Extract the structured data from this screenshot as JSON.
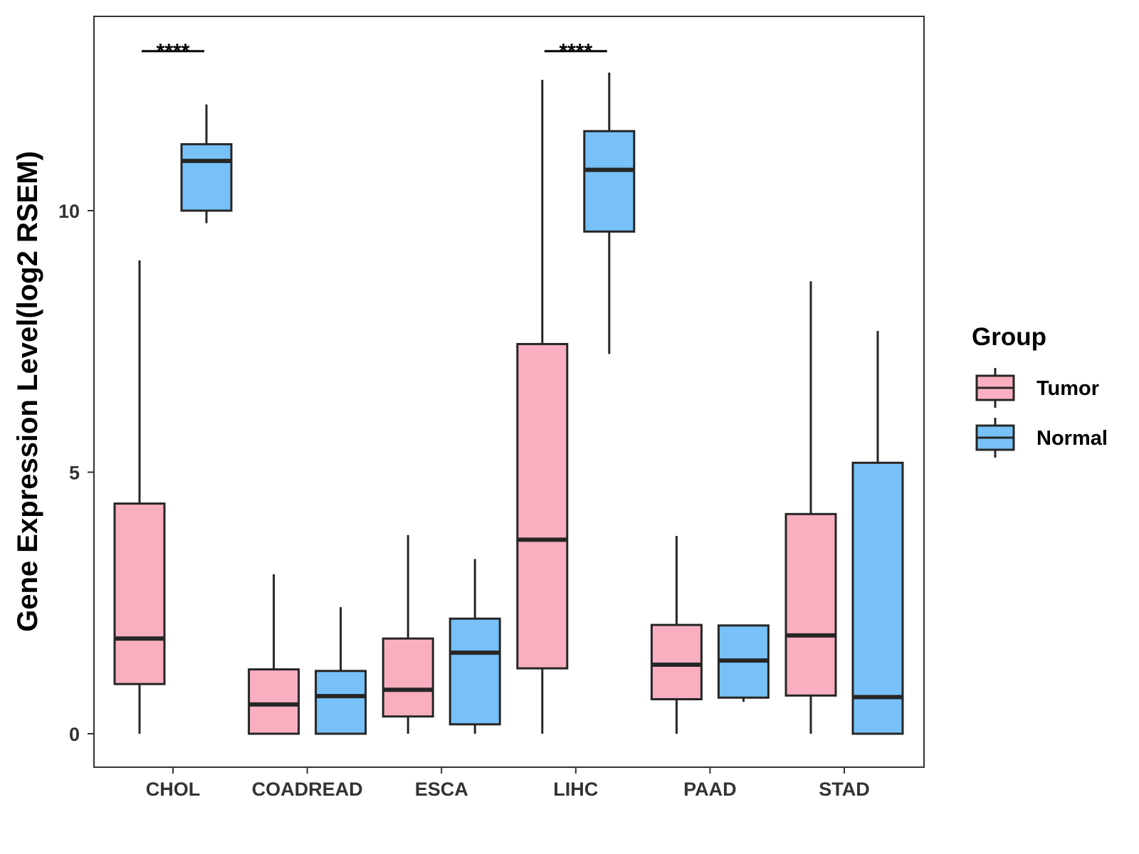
{
  "chart_data": {
    "type": "boxplot",
    "title": "",
    "xlabel": "",
    "ylabel": "Gene Expression Level(log2 RSEM)",
    "ylim": [
      -0.65,
      13.75
    ],
    "yticks": [
      0,
      5,
      10
    ],
    "ytick_labels": [
      "0",
      "5",
      "10"
    ],
    "grid": false,
    "categories": [
      "CHOL",
      "COADREAD",
      "ESCA",
      "LIHC",
      "PAAD",
      "STAD"
    ],
    "legend": {
      "title": "Group",
      "position": "right"
    },
    "series": [
      {
        "name": "Tumor",
        "color": "#F9AFC0",
        "boxes": [
          {
            "category": "CHOL",
            "min": 0.0,
            "q1": 0.95,
            "median": 1.82,
            "q3": 4.4,
            "max": 9.05
          },
          {
            "category": "COADREAD",
            "min": 0.0,
            "q1": 0.0,
            "median": 0.56,
            "q3": 1.23,
            "max": 3.05
          },
          {
            "category": "ESCA",
            "min": 0.0,
            "q1": 0.33,
            "median": 0.84,
            "q3": 1.82,
            "max": 3.8
          },
          {
            "category": "LIHC",
            "min": 0.0,
            "q1": 1.25,
            "median": 3.71,
            "q3": 7.45,
            "max": 12.5
          },
          {
            "category": "PAAD",
            "min": 0.0,
            "q1": 0.66,
            "median": 1.32,
            "q3": 2.08,
            "max": 3.78
          },
          {
            "category": "STAD",
            "min": 0.0,
            "q1": 0.73,
            "median": 1.88,
            "q3": 4.2,
            "max": 8.65
          }
        ]
      },
      {
        "name": "Normal",
        "color": "#77C1F8",
        "boxes": [
          {
            "category": "CHOL",
            "min": 9.76,
            "q1": 10.0,
            "median": 10.95,
            "q3": 11.27,
            "max": 12.03
          },
          {
            "category": "COADREAD",
            "min": 0.0,
            "q1": 0.0,
            "median": 0.72,
            "q3": 1.2,
            "max": 2.42
          },
          {
            "category": "ESCA",
            "min": 0.0,
            "q1": 0.18,
            "median": 1.55,
            "q3": 2.2,
            "max": 3.34
          },
          {
            "category": "LIHC",
            "min": 7.26,
            "q1": 9.6,
            "median": 10.78,
            "q3": 11.52,
            "max": 12.64
          },
          {
            "category": "PAAD",
            "min": 0.61,
            "q1": 0.69,
            "median": 1.4,
            "q3": 2.07,
            "max": 2.07
          },
          {
            "category": "STAD",
            "min": 0.0,
            "q1": 0.0,
            "median": 0.7,
            "q3": 5.18,
            "max": 7.7
          }
        ]
      }
    ],
    "annotations": [
      {
        "category": "CHOL",
        "text": "****",
        "y": 13.05
      },
      {
        "category": "LIHC",
        "text": "****",
        "y": 13.05
      }
    ]
  }
}
